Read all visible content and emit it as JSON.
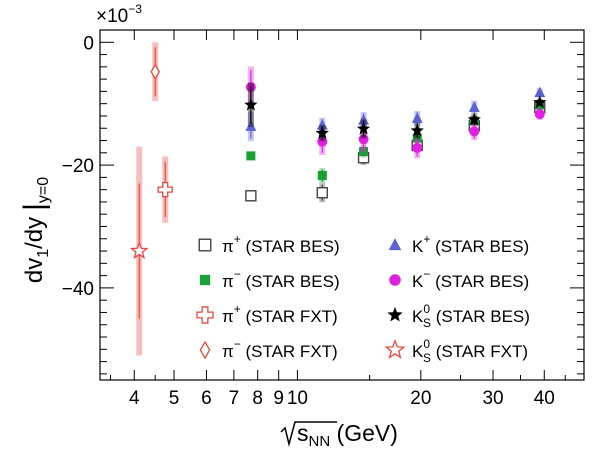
{
  "chart_data": {
    "type": "scatter",
    "x_scale": "log",
    "xlim": [
      3.3,
      50
    ],
    "ylim": [
      -55,
      2
    ],
    "ylabel_parts": {
      "main": "dv",
      "sub1": "1",
      "mid": "/dy",
      "sub2": "y=0"
    },
    "xlabel_parts": {
      "main": "s",
      "sub": "NN",
      "unit": " (GeV)"
    },
    "scale_factor": "×10",
    "scale_exponent": "−3",
    "x_ticks": [
      {
        "v": 4,
        "label": "4"
      },
      {
        "v": 5,
        "label": "5"
      },
      {
        "v": 6,
        "label": "6"
      },
      {
        "v": 7,
        "label": "7"
      },
      {
        "v": 8,
        "label": "8"
      },
      {
        "v": 9,
        "label": "9"
      },
      {
        "v": 10,
        "label": "10"
      },
      {
        "v": 20,
        "label": "20"
      },
      {
        "v": 30,
        "label": "30"
      },
      {
        "v": 40,
        "label": "40"
      }
    ],
    "y_ticks": [
      {
        "v": 0,
        "label": "0"
      },
      {
        "v": -20,
        "label": "−20"
      },
      {
        "v": -40,
        "label": "−40"
      }
    ],
    "series": [
      {
        "name": "π⁺ (STAR BES)",
        "marker": "square-open",
        "color": "#444444",
        "points": [
          {
            "x": 7.7,
            "y": -25,
            "err": 0.6
          },
          {
            "x": 11.5,
            "y": -24.5,
            "err": 1.3
          },
          {
            "x": 14.5,
            "y": -18.8,
            "err": 1.0
          },
          {
            "x": 19.6,
            "y": -16.8,
            "err": 0.7
          },
          {
            "x": 27,
            "y": -13.6,
            "err": 0.6
          },
          {
            "x": 39,
            "y": -10.6,
            "err": 0.5
          }
        ]
      },
      {
        "name": "π⁻ (STAR BES)",
        "marker": "square-filled",
        "color": "#18a032",
        "points": [
          {
            "x": 7.7,
            "y": -18.5,
            "err": 0.4
          },
          {
            "x": 11.5,
            "y": -21.7,
            "err": 1.0
          },
          {
            "x": 14.5,
            "y": -17.8,
            "err": 0.8
          },
          {
            "x": 19.6,
            "y": -15.6,
            "err": 0.6
          },
          {
            "x": 27,
            "y": -12.8,
            "err": 0.5
          },
          {
            "x": 39,
            "y": -10.2,
            "err": 0.4
          }
        ]
      },
      {
        "name": "π⁺ (STAR FXT)",
        "marker": "cross-open",
        "color": "#e8463e",
        "points": [
          {
            "x": 4.5,
            "y": -24,
            "err": 4.5
          }
        ]
      },
      {
        "name": "π⁻ (STAR FXT)",
        "marker": "diamond-open",
        "color": "#e8463e",
        "points": [
          {
            "x": 4.5,
            "y": -4.8,
            "err": 4.0
          }
        ]
      },
      {
        "name": "K⁺ (STAR BES)",
        "marker": "triangle-filled",
        "color": "#5a62d0",
        "points": [
          {
            "x": 7.7,
            "y": -13.7,
            "err": 2.0
          },
          {
            "x": 11.5,
            "y": -13.5,
            "err": 1.0
          },
          {
            "x": 14.5,
            "y": -12.7,
            "err": 1.1
          },
          {
            "x": 19.6,
            "y": -12.4,
            "err": 1.0
          },
          {
            "x": 27,
            "y": -10.6,
            "err": 0.9
          },
          {
            "x": 39,
            "y": -8.2,
            "err": 0.6
          }
        ]
      },
      {
        "name": "K⁻ (STAR BES)",
        "marker": "circle-filled",
        "color": "#e020e0",
        "points": [
          {
            "x": 7.7,
            "y": -7.3,
            "err": 2.8
          },
          {
            "x": 11.5,
            "y": -16.2,
            "err": 1.8
          },
          {
            "x": 14.5,
            "y": -15.8,
            "err": 1.8
          },
          {
            "x": 19.6,
            "y": -17.2,
            "err": 1.4
          },
          {
            "x": 27,
            "y": -14.5,
            "err": 1.2
          },
          {
            "x": 39,
            "y": -11.7,
            "err": 0.8
          }
        ]
      },
      {
        "name": "K⁰S (STAR BES)",
        "marker": "star-filled",
        "color": "#000000",
        "points": [
          {
            "x": 7.7,
            "y": -10.2,
            "err": 3.0
          },
          {
            "x": 11.5,
            "y": -14.8,
            "err": 1.1
          },
          {
            "x": 14.5,
            "y": -14.1,
            "err": 1.3
          },
          {
            "x": 19.6,
            "y": -14.4,
            "err": 1.1
          },
          {
            "x": 27,
            "y": -12.6,
            "err": 0.8
          },
          {
            "x": 39,
            "y": -9.8,
            "err": 0.5
          }
        ]
      },
      {
        "name": "K⁰S (STAR FXT)",
        "marker": "star-open",
        "color": "#e8463e",
        "points": [
          {
            "x": 4.5,
            "y": -34,
            "err": 11,
            "sys": 17
          }
        ]
      }
    ],
    "legend": {
      "placement": "bottom-right",
      "entries": [
        {
          "marker": "square-open",
          "color": "#444444",
          "particle": "π",
          "sup": "+",
          "sub": "",
          "source": "(STAR BES)"
        },
        {
          "marker": "triangle-filled",
          "color": "#5a62d0",
          "particle": "K",
          "sup": "+",
          "sub": "",
          "source": "(STAR BES)"
        },
        {
          "marker": "square-filled",
          "color": "#18a032",
          "particle": "π",
          "sup": "−",
          "sub": "",
          "source": "(STAR BES)"
        },
        {
          "marker": "circle-filled",
          "color": "#e020e0",
          "particle": "K",
          "sup": "−",
          "sub": "",
          "source": "(STAR BES)"
        },
        {
          "marker": "cross-open",
          "color": "#e8463e",
          "particle": "π",
          "sup": "+",
          "sub": "",
          "source": "(STAR FXT)"
        },
        {
          "marker": "star-filled",
          "color": "#000000",
          "particle": "K",
          "sup": "0",
          "sub": "S",
          "source": "(STAR BES)"
        },
        {
          "marker": "diamond-open",
          "color": "#e8463e",
          "particle": "π",
          "sup": "−",
          "sub": "",
          "source": "(STAR FXT)"
        },
        {
          "marker": "star-open",
          "color": "#e8463e",
          "particle": "K",
          "sup": "0",
          "sub": "S",
          "source": "(STAR FXT)"
        }
      ]
    }
  }
}
